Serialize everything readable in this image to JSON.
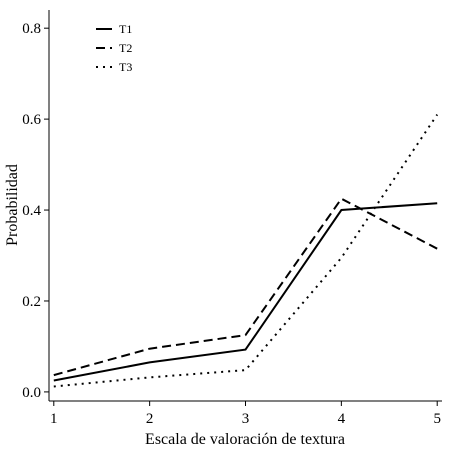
{
  "chart_data": {
    "type": "line",
    "title": "",
    "xlabel": "Escala de valoración de textura",
    "ylabel": "Probabilidad",
    "x": [
      1,
      2,
      3,
      4,
      5
    ],
    "xticks": [
      "1",
      "2",
      "3",
      "4",
      "5"
    ],
    "xlim": [
      0.95,
      5.05
    ],
    "ylim": [
      -0.02,
      0.84
    ],
    "yticks": [
      "0.0",
      "0.2",
      "0.4",
      "0.6",
      "0.8"
    ],
    "ytick_values": [
      0.0,
      0.2,
      0.4,
      0.6,
      0.8
    ],
    "grid": false,
    "legend_position": "top-left",
    "series": [
      {
        "name": "T1",
        "style": "solid",
        "values": [
          0.025,
          0.065,
          0.093,
          0.4,
          0.415
        ]
      },
      {
        "name": "T2",
        "style": "dashed",
        "values": [
          0.037,
          0.095,
          0.125,
          0.425,
          0.315
        ]
      },
      {
        "name": "T3",
        "style": "dotted",
        "values": [
          0.012,
          0.032,
          0.048,
          0.295,
          0.61
        ]
      }
    ],
    "colors": {
      "line": "#000000",
      "background": "#ffffff"
    }
  }
}
